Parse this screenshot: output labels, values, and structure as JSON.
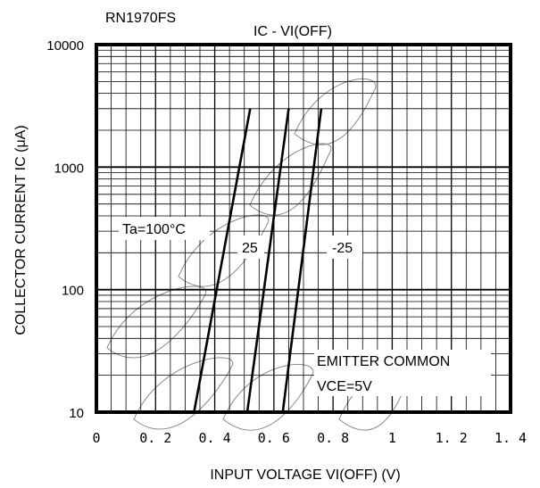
{
  "chart_data": {
    "type": "line",
    "part_number": "RN1970FS",
    "title": "IC - VI(OFF)",
    "xlabel": "INPUT VOLTAGE VI(OFF) (V)",
    "ylabel": "COLLECTOR CURRENT IC (μA)",
    "xlim": [
      0,
      1.4
    ],
    "ylim": [
      10,
      10000
    ],
    "yscale": "log",
    "grid": true,
    "x_ticks": [
      0,
      0.2,
      0.4,
      0.6,
      0.8,
      1.0,
      1.2,
      1.4
    ],
    "x_tick_labels": [
      "0",
      "0. 2",
      "0. 4",
      "0. 6",
      "0. 8",
      "1",
      "1. 2",
      "1. 4"
    ],
    "y_ticks": [
      10,
      100,
      1000,
      10000
    ],
    "y_tick_labels": [
      "10",
      "100",
      "1000",
      "10000"
    ],
    "series": [
      {
        "name": "Ta=100°C",
        "x": [
          0.33,
          0.52
        ],
        "y": [
          10,
          3000
        ]
      },
      {
        "name": "25",
        "x": [
          0.51,
          0.65
        ],
        "y": [
          10,
          3000
        ]
      },
      {
        "name": "-25",
        "x": [
          0.63,
          0.76
        ],
        "y": [
          10,
          3000
        ]
      }
    ],
    "annotations": [
      "EMITTER COMMON",
      "VCE=5V"
    ]
  }
}
